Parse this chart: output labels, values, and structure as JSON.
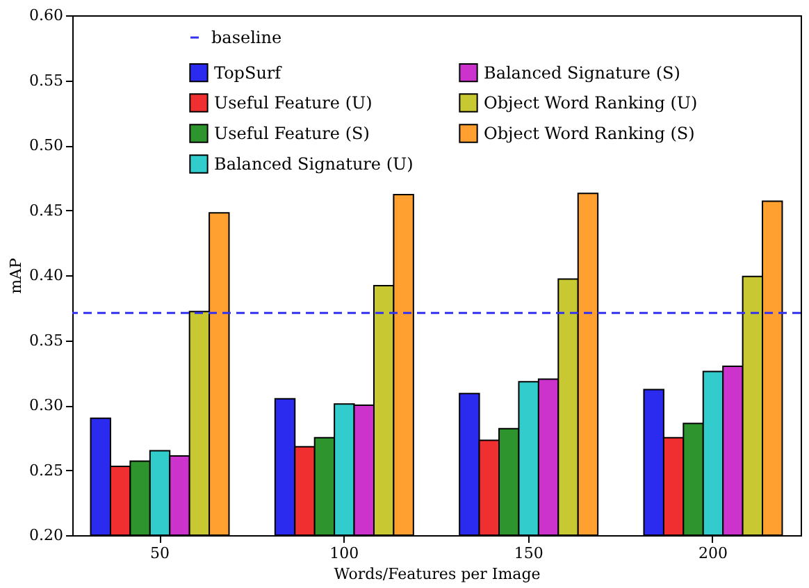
{
  "chart_data": {
    "type": "bar",
    "xlabel": "Words/Features per Image",
    "ylabel": "mAP",
    "categories": [
      "50",
      "100",
      "150",
      "200"
    ],
    "series": [
      {
        "name": "TopSurf",
        "color": "#2b2bf0",
        "values": [
          0.29,
          0.305,
          0.309,
          0.312
        ]
      },
      {
        "name": "Useful Feature (U)",
        "color": "#f03030",
        "values": [
          0.253,
          0.268,
          0.273,
          0.275
        ]
      },
      {
        "name": "Useful Feature (S)",
        "color": "#2e952e",
        "values": [
          0.257,
          0.275,
          0.282,
          0.286
        ]
      },
      {
        "name": "Balanced Signature (U)",
        "color": "#33cccc",
        "values": [
          0.265,
          0.301,
          0.318,
          0.326
        ]
      },
      {
        "name": "Balanced Signature (S)",
        "color": "#cc33cc",
        "values": [
          0.261,
          0.3,
          0.32,
          0.33
        ]
      },
      {
        "name": "Object Word Ranking (U)",
        "color": "#c8c832",
        "values": [
          0.372,
          0.392,
          0.397,
          0.399
        ]
      },
      {
        "name": "Object Word Ranking (S)",
        "color": "#ffa030",
        "values": [
          0.448,
          0.462,
          0.463,
          0.457
        ]
      }
    ],
    "ylim": [
      0.2,
      0.6
    ],
    "yticks": [
      {
        "value": 0.2,
        "label": "0.20"
      },
      0.25,
      {
        "value": 0.3,
        "label": "0.30"
      },
      0.35,
      {
        "value": 0.4,
        "label": "0.40"
      },
      0.45,
      {
        "value": 0.5,
        "label": "0.50"
      },
      0.55,
      {
        "value": 0.6,
        "label": "0.60"
      }
    ],
    "ref_lines": [
      {
        "axis": "y",
        "value": 0.371,
        "label": "baseline",
        "color": "#3333ee",
        "line_style": "dashed"
      }
    ],
    "legend": "top",
    "grid": false
  }
}
